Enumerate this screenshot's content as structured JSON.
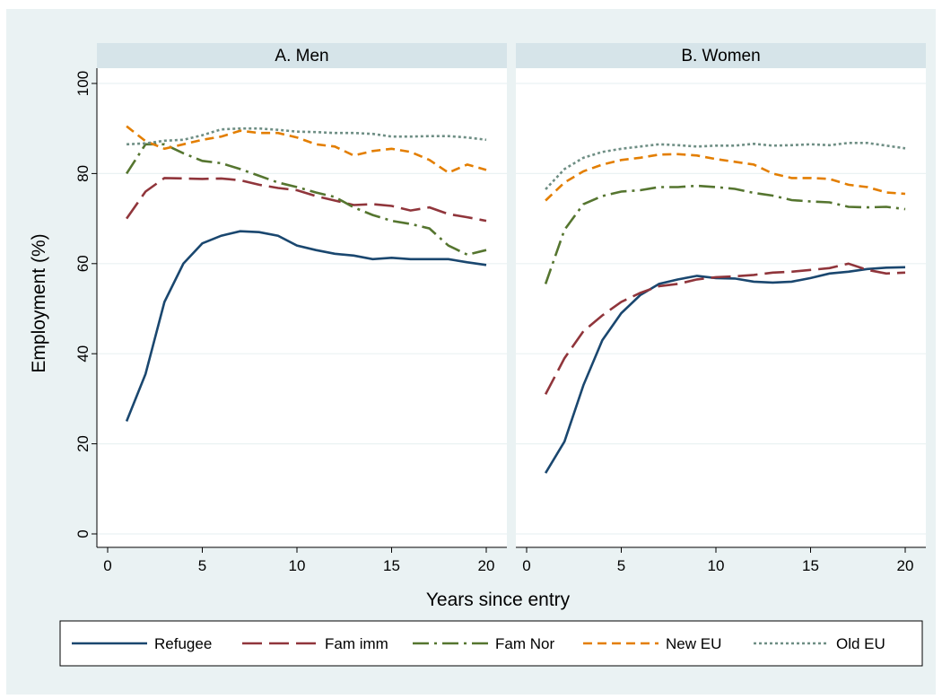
{
  "chart_data": {
    "type": "line",
    "y_label": "Employment (%)",
    "x_label": "Years since entry",
    "x": [
      1,
      2,
      3,
      4,
      5,
      6,
      7,
      8,
      9,
      10,
      11,
      12,
      13,
      14,
      15,
      16,
      17,
      18,
      19,
      20
    ],
    "xlim": [
      0,
      20
    ],
    "ylim": [
      0,
      100
    ],
    "xticks": [
      0,
      5,
      10,
      15,
      20
    ],
    "yticks": [
      0,
      20,
      40,
      60,
      80,
      100
    ],
    "grid": true,
    "legend": "bottom",
    "series": [
      {
        "name": "Refugee",
        "color": "#1a476f",
        "dash": "solid"
      },
      {
        "name": "Fam imm",
        "color": "#90353b",
        "dash": "longdash"
      },
      {
        "name": "Fam Nor",
        "color": "#55752f",
        "dash": "dashdot"
      },
      {
        "name": "New EU",
        "color": "#e37e00",
        "dash": "dash"
      },
      {
        "name": "Old EU",
        "color": "#6e8e84",
        "dash": "dot"
      }
    ],
    "panels": [
      {
        "title": "A. Men",
        "values": [
          [
            25,
            35.5,
            51.5,
            60,
            64.5,
            66.2,
            67.2,
            67,
            66.2,
            64,
            63,
            62.2,
            61.8,
            61,
            61.3,
            61,
            61,
            61,
            60.3,
            59.7
          ],
          [
            70,
            76,
            79,
            78.9,
            78.8,
            78.9,
            78.5,
            77.5,
            76.8,
            76.3,
            75,
            74,
            73,
            73.2,
            72.8,
            71.8,
            72.5,
            71,
            70.3,
            69.5
          ],
          [
            80,
            86.5,
            86.5,
            84.5,
            82.8,
            82.3,
            81,
            79.5,
            78,
            77,
            75.8,
            74.8,
            72.5,
            70.8,
            69.5,
            68.8,
            67.8,
            64,
            62,
            63
          ],
          [
            90.5,
            87.2,
            85.5,
            86.5,
            87.5,
            88.2,
            89.5,
            89,
            89,
            88,
            86.5,
            86,
            84,
            85,
            85.5,
            84.8,
            83,
            80.2,
            82,
            80.8
          ],
          [
            86.5,
            86.7,
            87.3,
            87.5,
            88.5,
            89.8,
            90,
            90,
            89.7,
            89.3,
            89.2,
            89,
            89,
            88.8,
            88.2,
            88.2,
            88.3,
            88.3,
            88,
            87.5
          ]
        ]
      },
      {
        "title": "B. Women",
        "values": [
          [
            13.5,
            20.5,
            33,
            43,
            49,
            53,
            55.5,
            56.5,
            57.3,
            56.8,
            56.7,
            56,
            55.8,
            56,
            56.8,
            57.8,
            58.2,
            58.8,
            59.1,
            59.2
          ],
          [
            31,
            39,
            45,
            48.5,
            51.5,
            53.5,
            55,
            55.5,
            56.5,
            57,
            57.2,
            57.5,
            58,
            58.2,
            58.6,
            59,
            60,
            58.6,
            57.8,
            58
          ],
          [
            55.5,
            67.5,
            73.2,
            75,
            76,
            76.3,
            77,
            77,
            77.3,
            77,
            76.6,
            75.7,
            75.1,
            74.1,
            73.8,
            73.6,
            72.6,
            72.5,
            72.6,
            72.1
          ],
          [
            74,
            78,
            80.5,
            82,
            83,
            83.5,
            84.2,
            84.3,
            84,
            83.2,
            82.6,
            82,
            80,
            79,
            79,
            78.8,
            77.5,
            77,
            75.8,
            75.5
          ],
          [
            76.5,
            81,
            83.5,
            84.8,
            85.5,
            86,
            86.5,
            86.3,
            86,
            86.2,
            86.2,
            86.6,
            86.2,
            86.3,
            86.5,
            86.3,
            86.8,
            86.8,
            86.2,
            85.6
          ]
        ]
      }
    ]
  }
}
